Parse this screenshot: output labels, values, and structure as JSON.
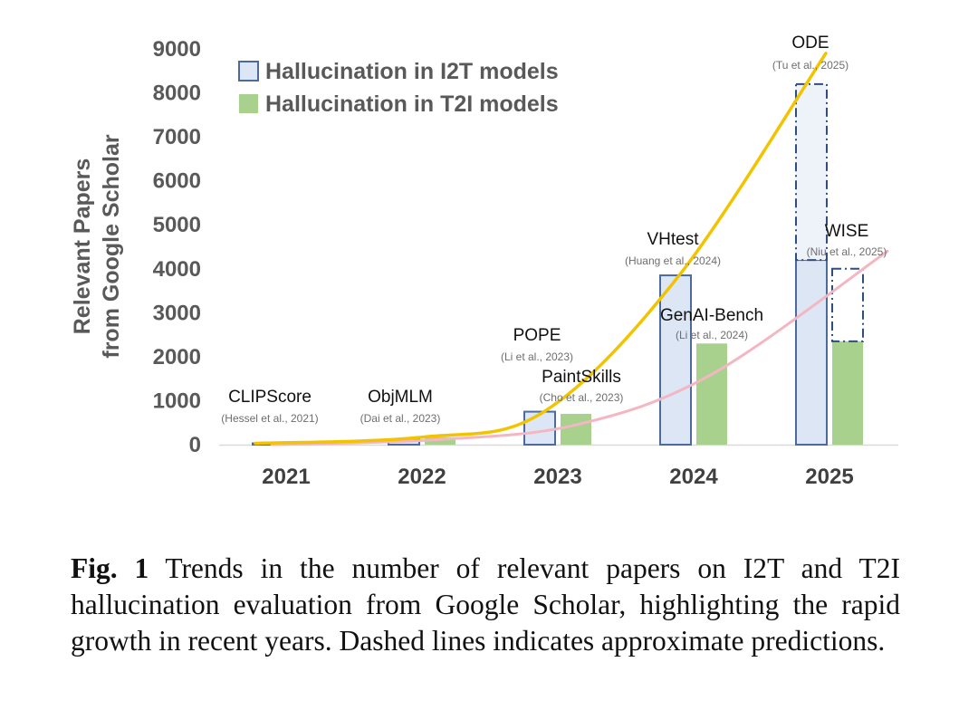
{
  "chart_data": {
    "type": "bar",
    "categories": [
      "2021",
      "2022",
      "2023",
      "2024",
      "2025"
    ],
    "ylabel_lines": [
      "Relevant Papers",
      "from Google Scholar"
    ],
    "ylim": [
      0,
      9000
    ],
    "yticks": [
      0,
      1000,
      2000,
      3000,
      4000,
      5000,
      6000,
      7000,
      8000,
      9000
    ],
    "series": [
      {
        "name": "Hallucination in I2T models",
        "color": "#4a6b9c",
        "fill": "#dce6f4",
        "values": [
          30,
          120,
          750,
          3850,
          4200
        ],
        "predicted_top": [
          null,
          null,
          null,
          null,
          8200
        ],
        "trend": [
          30,
          170,
          740,
          3850,
          8900
        ],
        "trend_color": "#f2c400"
      },
      {
        "name": "Hallucination in T2I models",
        "color": "#8cc07a",
        "fill": "#a9d18e",
        "values": [
          0,
          170,
          700,
          2300,
          2350
        ],
        "predicted_top": [
          null,
          null,
          null,
          null,
          4000
        ],
        "trend": [
          0,
          110,
          450,
          1600,
          4400
        ],
        "trend_color": "#f4b6c2"
      }
    ],
    "annotations": [
      {
        "name": "CLIPScore",
        "cite": "(Hessel et al., 2021)"
      },
      {
        "name": "ObjMLM",
        "cite": "(Dai et al., 2023)"
      },
      {
        "name": "POPE",
        "cite": "(Li et al., 2023)"
      },
      {
        "name": "PaintSkills",
        "cite": "(Cho et al., 2023)"
      },
      {
        "name": "VHtest",
        "cite": "(Huang et al., 2024)"
      },
      {
        "name": "GenAI-Bench",
        "cite": "(Li et al., 2024)"
      },
      {
        "name": "ODE",
        "cite": "(Tu et al., 2025)"
      },
      {
        "name": "WISE",
        "cite": "(Niu et al., 2025)"
      }
    ]
  },
  "caption": {
    "label": "Fig. 1",
    "text": "Trends in the number of relevant papers on I2T and T2I hallucination evaluation from Google Scholar, highlighting the rapid growth in recent years. Dashed lines indicates approximate predictions."
  }
}
